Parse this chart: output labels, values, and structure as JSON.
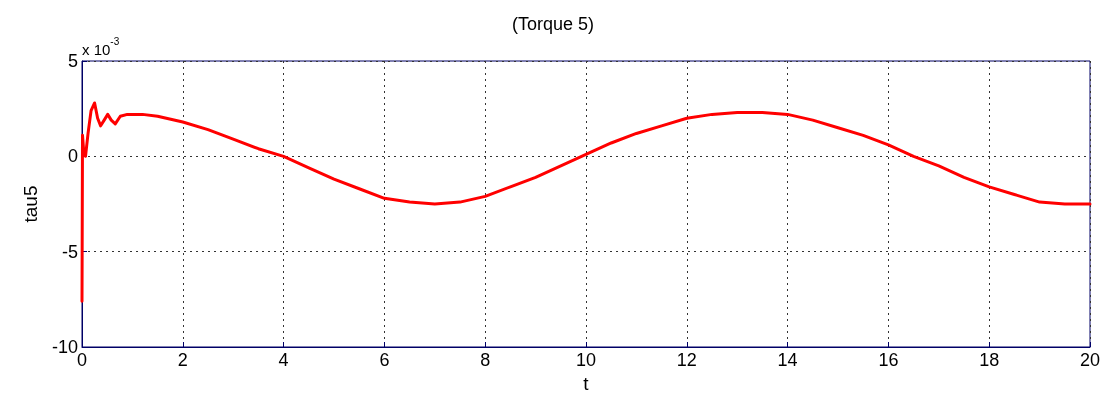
{
  "chart_data": {
    "type": "line",
    "title": "(Torque 5)",
    "xlabel": "t",
    "ylabel": "tau5",
    "annotations": [
      "x 10$^{-3}$"
    ],
    "x": [
      0,
      0.01,
      0.03,
      0.07,
      0.12,
      0.18,
      0.25,
      0.31,
      0.37,
      0.44,
      0.51,
      0.58,
      0.66,
      0.76,
      0.9,
      1.2,
      1.5,
      2,
      2.5,
      3,
      3.5,
      4,
      4.5,
      5,
      5.5,
      6,
      6.5,
      7,
      7.5,
      8,
      8.5,
      9,
      9.5,
      10,
      10.5,
      11,
      11.5,
      12,
      12.5,
      13,
      13.5,
      14,
      14.5,
      15,
      15.5,
      16,
      16.5,
      17,
      17.5,
      18,
      18.5,
      19,
      19.5,
      20
    ],
    "series": [
      {
        "color": "#ff0000",
        "values": [
          -7.6,
          1.1,
          0.4,
          0,
          1.2,
          2.4,
          2.8,
          2.0,
          1.6,
          1.9,
          2.2,
          1.9,
          1.7,
          2.1,
          2.2,
          2.2,
          2.1,
          1.8,
          1.4,
          0.9,
          0.4,
          0,
          -0.6,
          -1.2,
          -1.7,
          -2.2,
          -2.4,
          -2.5,
          -2.4,
          -2.1,
          -1.6,
          -1.1,
          -0.5,
          0.1,
          0.7,
          1.2,
          1.6,
          2.0,
          2.2,
          2.3,
          2.3,
          2.2,
          1.9,
          1.5,
          1.1,
          0.6,
          0,
          -0.5,
          -1.1,
          -1.6,
          -2.0,
          -2.4,
          -2.5,
          -2.5
        ]
      }
    ],
    "xlim": [
      0,
      20
    ],
    "xticks": [
      0,
      2,
      4,
      6,
      8,
      10,
      12,
      14,
      16,
      18,
      20
    ],
    "ylim": [
      -10,
      5
    ],
    "yticks": [
      -10,
      -5,
      0,
      5
    ],
    "grid": true,
    "line_style": "solid",
    "marker": "none"
  }
}
